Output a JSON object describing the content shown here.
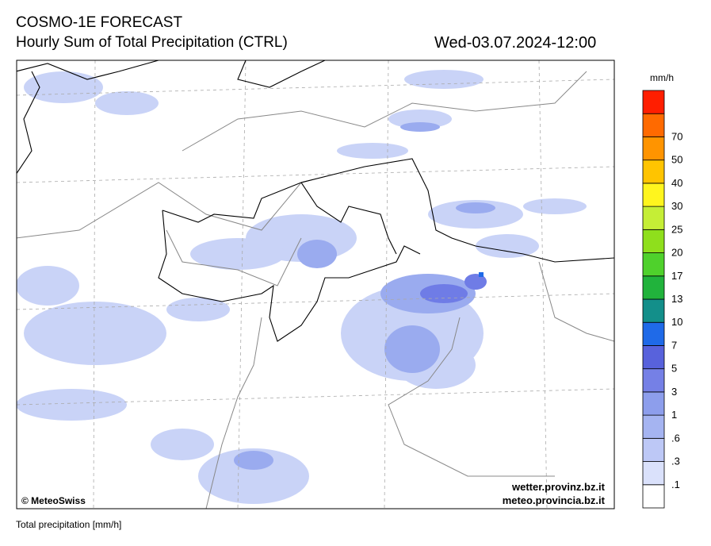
{
  "header": {
    "title": "COSMO-1E FORECAST",
    "subtitle": "Hourly Sum of Total Precipitation (CTRL)",
    "datetime": "Wed-03.07.2024-12:00"
  },
  "colorbar": {
    "unit": "mm/h",
    "levels": [
      ".1",
      ".3",
      ".6",
      "1",
      "3",
      "5",
      "7",
      "10",
      "13",
      "17",
      "20",
      "25",
      "30",
      "40",
      "50",
      "70"
    ],
    "colors": [
      "#ffffff",
      "#dae1fb",
      "#bdc8f6",
      "#a5b4f1",
      "#8d9eec",
      "#7580e6",
      "#5862dc",
      "#1f6ae8",
      "#138f8a",
      "#21b33c",
      "#4fd12c",
      "#8fdf1c",
      "#c5ee36",
      "#fff51e",
      "#ffc400",
      "#ff9400",
      "#ff6a00",
      "#ff1e00"
    ]
  },
  "map": {
    "credit": "© MeteoSwiss",
    "sources": [
      "wetter.provinz.bz.it",
      "meteo.provincia.bz.it"
    ]
  },
  "footer": {
    "caption": "Total precipitation [mm/h]"
  }
}
